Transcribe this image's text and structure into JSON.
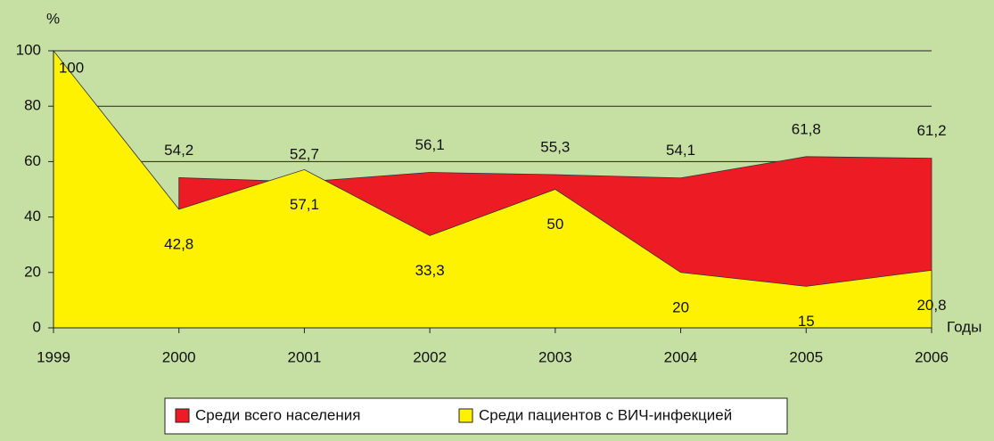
{
  "chart_data": {
    "type": "area",
    "y_label": "%",
    "x_label": "Годы",
    "categories": [
      "1999",
      "2000",
      "2001",
      "2002",
      "2003",
      "2004",
      "2005",
      "2006"
    ],
    "series": [
      {
        "name": "Среди всего населения",
        "color": "#ed1c24",
        "values": [
          null,
          54.2,
          52.7,
          56.1,
          55.3,
          54.1,
          61.8,
          61.2
        ],
        "value_labels": [
          null,
          "54,2",
          "52,7",
          "56,1",
          "55,3",
          "54,1",
          "61,8",
          "61,2"
        ]
      },
      {
        "name": "Среди пациентов с ВИЧ-инфекцией",
        "color": "#fff200",
        "values": [
          100,
          42.8,
          57.1,
          33.3,
          50,
          20,
          15,
          20.8
        ],
        "value_labels": [
          "100",
          "42,8",
          "57,1",
          "33,3",
          "50",
          "20",
          "15",
          "20,8"
        ]
      }
    ],
    "ylim": [
      0,
      100
    ],
    "yticks": [
      0,
      20,
      40,
      60,
      80,
      100
    ],
    "grid": true
  }
}
